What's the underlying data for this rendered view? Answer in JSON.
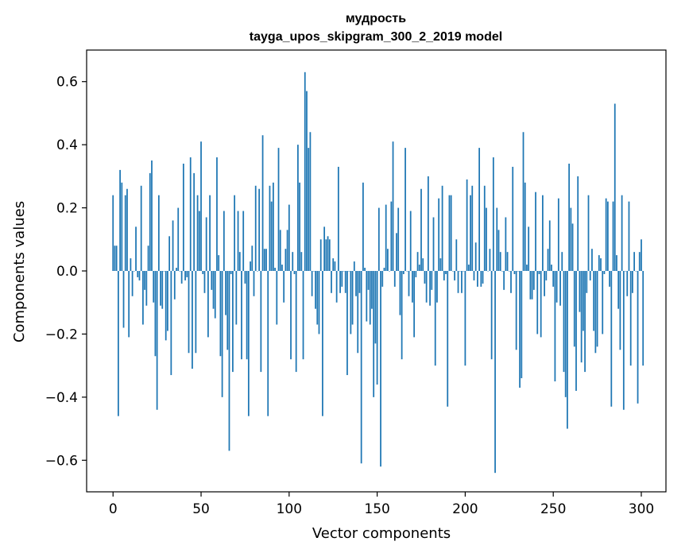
{
  "chart_data": {
    "type": "bar",
    "title": "мудрость",
    "subtitle": "tayga_upos_skipgram_300_2_2019 model",
    "xlabel": "Vector components",
    "ylabel": "Components values",
    "xlim": [
      -15,
      314
    ],
    "ylim": [
      -0.7,
      0.7
    ],
    "xticks": [
      0,
      50,
      100,
      150,
      200,
      250,
      300
    ],
    "xtick_labels": [
      "0",
      "50",
      "100",
      "150",
      "200",
      "250",
      "300"
    ],
    "yticks": [
      -0.6,
      -0.4,
      -0.2,
      0.0,
      0.2,
      0.4,
      0.6
    ],
    "ytick_labels": [
      "−0.6",
      "−0.4",
      "−0.2",
      "0.0",
      "0.2",
      "0.4",
      "0.6"
    ],
    "bar_color": "#1f77b4",
    "values": [
      0.24,
      0.08,
      0.08,
      -0.46,
      0.32,
      0.28,
      -0.18,
      0.24,
      0.26,
      -0.21,
      0.04,
      -0.08,
      0.0,
      0.14,
      -0.02,
      -0.03,
      0.27,
      -0.17,
      -0.06,
      -0.11,
      0.08,
      0.31,
      0.35,
      -0.1,
      -0.27,
      -0.44,
      0.24,
      -0.11,
      -0.12,
      0.0,
      -0.22,
      -0.19,
      0.11,
      -0.33,
      0.16,
      -0.09,
      0.01,
      0.2,
      0.0,
      -0.04,
      0.34,
      -0.03,
      -0.02,
      -0.26,
      0.36,
      -0.31,
      0.31,
      -0.26,
      0.24,
      0.19,
      0.41,
      -0.01,
      -0.07,
      0.17,
      -0.21,
      0.24,
      -0.06,
      -0.12,
      -0.15,
      0.36,
      0.05,
      -0.27,
      -0.4,
      0.19,
      -0.14,
      -0.25,
      -0.57,
      -0.01,
      -0.32,
      0.24,
      -0.17,
      0.19,
      0.06,
      -0.28,
      0.19,
      -0.04,
      -0.28,
      -0.46,
      0.03,
      0.08,
      -0.08,
      0.27,
      0.0,
      0.26,
      -0.32,
      0.43,
      0.07,
      0.07,
      -0.46,
      0.27,
      0.22,
      0.28,
      0.01,
      -0.17,
      0.39,
      0.13,
      0.02,
      -0.1,
      0.07,
      0.13,
      0.21,
      -0.28,
      0.06,
      -0.01,
      -0.32,
      0.4,
      0.28,
      0.06,
      -0.28,
      0.63,
      0.57,
      0.39,
      0.44,
      -0.08,
      0.0,
      -0.12,
      -0.17,
      -0.2,
      0.1,
      -0.46,
      0.14,
      0.1,
      0.11,
      0.1,
      -0.07,
      0.04,
      0.03,
      -0.1,
      0.33,
      -0.07,
      -0.05,
      0.0,
      -0.07,
      -0.33,
      0.0,
      -0.2,
      -0.17,
      0.03,
      -0.08,
      -0.26,
      -0.07,
      -0.61,
      0.28,
      0.01,
      -0.16,
      -0.06,
      -0.17,
      -0.12,
      -0.4,
      -0.23,
      -0.36,
      0.2,
      -0.62,
      -0.05,
      0.01,
      0.21,
      0.07,
      0.0,
      0.22,
      0.41,
      -0.05,
      0.12,
      0.2,
      -0.14,
      -0.28,
      -0.01,
      0.39,
      0.0,
      -0.08,
      0.19,
      -0.1,
      -0.21,
      -0.02,
      0.06,
      0.02,
      0.26,
      0.04,
      -0.04,
      -0.1,
      0.3,
      -0.11,
      -0.06,
      0.17,
      -0.3,
      -0.1,
      0.23,
      0.04,
      0.27,
      -0.03,
      -0.01,
      -0.43,
      0.24,
      0.24,
      0.0,
      -0.03,
      0.1,
      -0.07,
      0.0,
      -0.07,
      0.0,
      -0.3,
      0.29,
      0.02,
      0.24,
      0.27,
      -0.03,
      0.09,
      -0.05,
      0.39,
      -0.05,
      -0.04,
      0.27,
      0.2,
      0.0,
      0.07,
      -0.28,
      0.36,
      -0.64,
      0.2,
      0.13,
      0.06,
      0.0,
      -0.06,
      0.17,
      0.06,
      0.0,
      -0.07,
      0.33,
      -0.01,
      -0.25,
      0.0,
      -0.37,
      -0.34,
      0.44,
      0.28,
      0.02,
      0.14,
      -0.09,
      -0.09,
      -0.06,
      0.25,
      -0.2,
      -0.01,
      -0.21,
      0.24,
      -0.08,
      -0.03,
      0.07,
      0.16,
      0.02,
      -0.05,
      -0.35,
      -0.1,
      0.23,
      -0.11,
      0.06,
      -0.32,
      -0.4,
      -0.5,
      0.34,
      0.2,
      0.15,
      -0.24,
      -0.38,
      0.3,
      -0.13,
      -0.29,
      -0.19,
      -0.32,
      -0.07,
      0.24,
      -0.03,
      0.07,
      -0.19,
      -0.26,
      -0.24,
      0.05,
      0.04,
      -0.2,
      -0.01,
      0.23,
      0.22,
      -0.05,
      -0.43,
      0.22,
      0.53,
      0.05,
      -0.12,
      -0.25,
      0.24,
      -0.44,
      0.0,
      -0.08,
      0.22,
      -0.3,
      -0.07,
      0.06,
      0.0,
      -0.42,
      0.06,
      0.1,
      -0.3
    ]
  }
}
